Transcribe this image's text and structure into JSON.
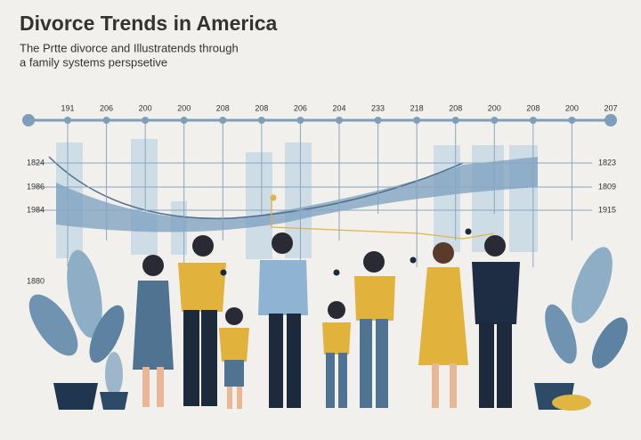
{
  "header": {
    "title": "Divorce Trends in America",
    "subtitle_lines": [
      "The Prtte divorce and Illustratends through",
      "a family systems perspsetive"
    ]
  },
  "timeline": {
    "labels": [
      "191",
      "206",
      "200",
      "200",
      "208",
      "208",
      "206",
      "204",
      "233",
      "218",
      "208",
      "200",
      "208",
      "200",
      "207"
    ]
  },
  "left_labels": [
    "1824",
    "1986",
    "1984",
    "1880"
  ],
  "right_labels": [
    "1823",
    "1809",
    "1915"
  ]
}
